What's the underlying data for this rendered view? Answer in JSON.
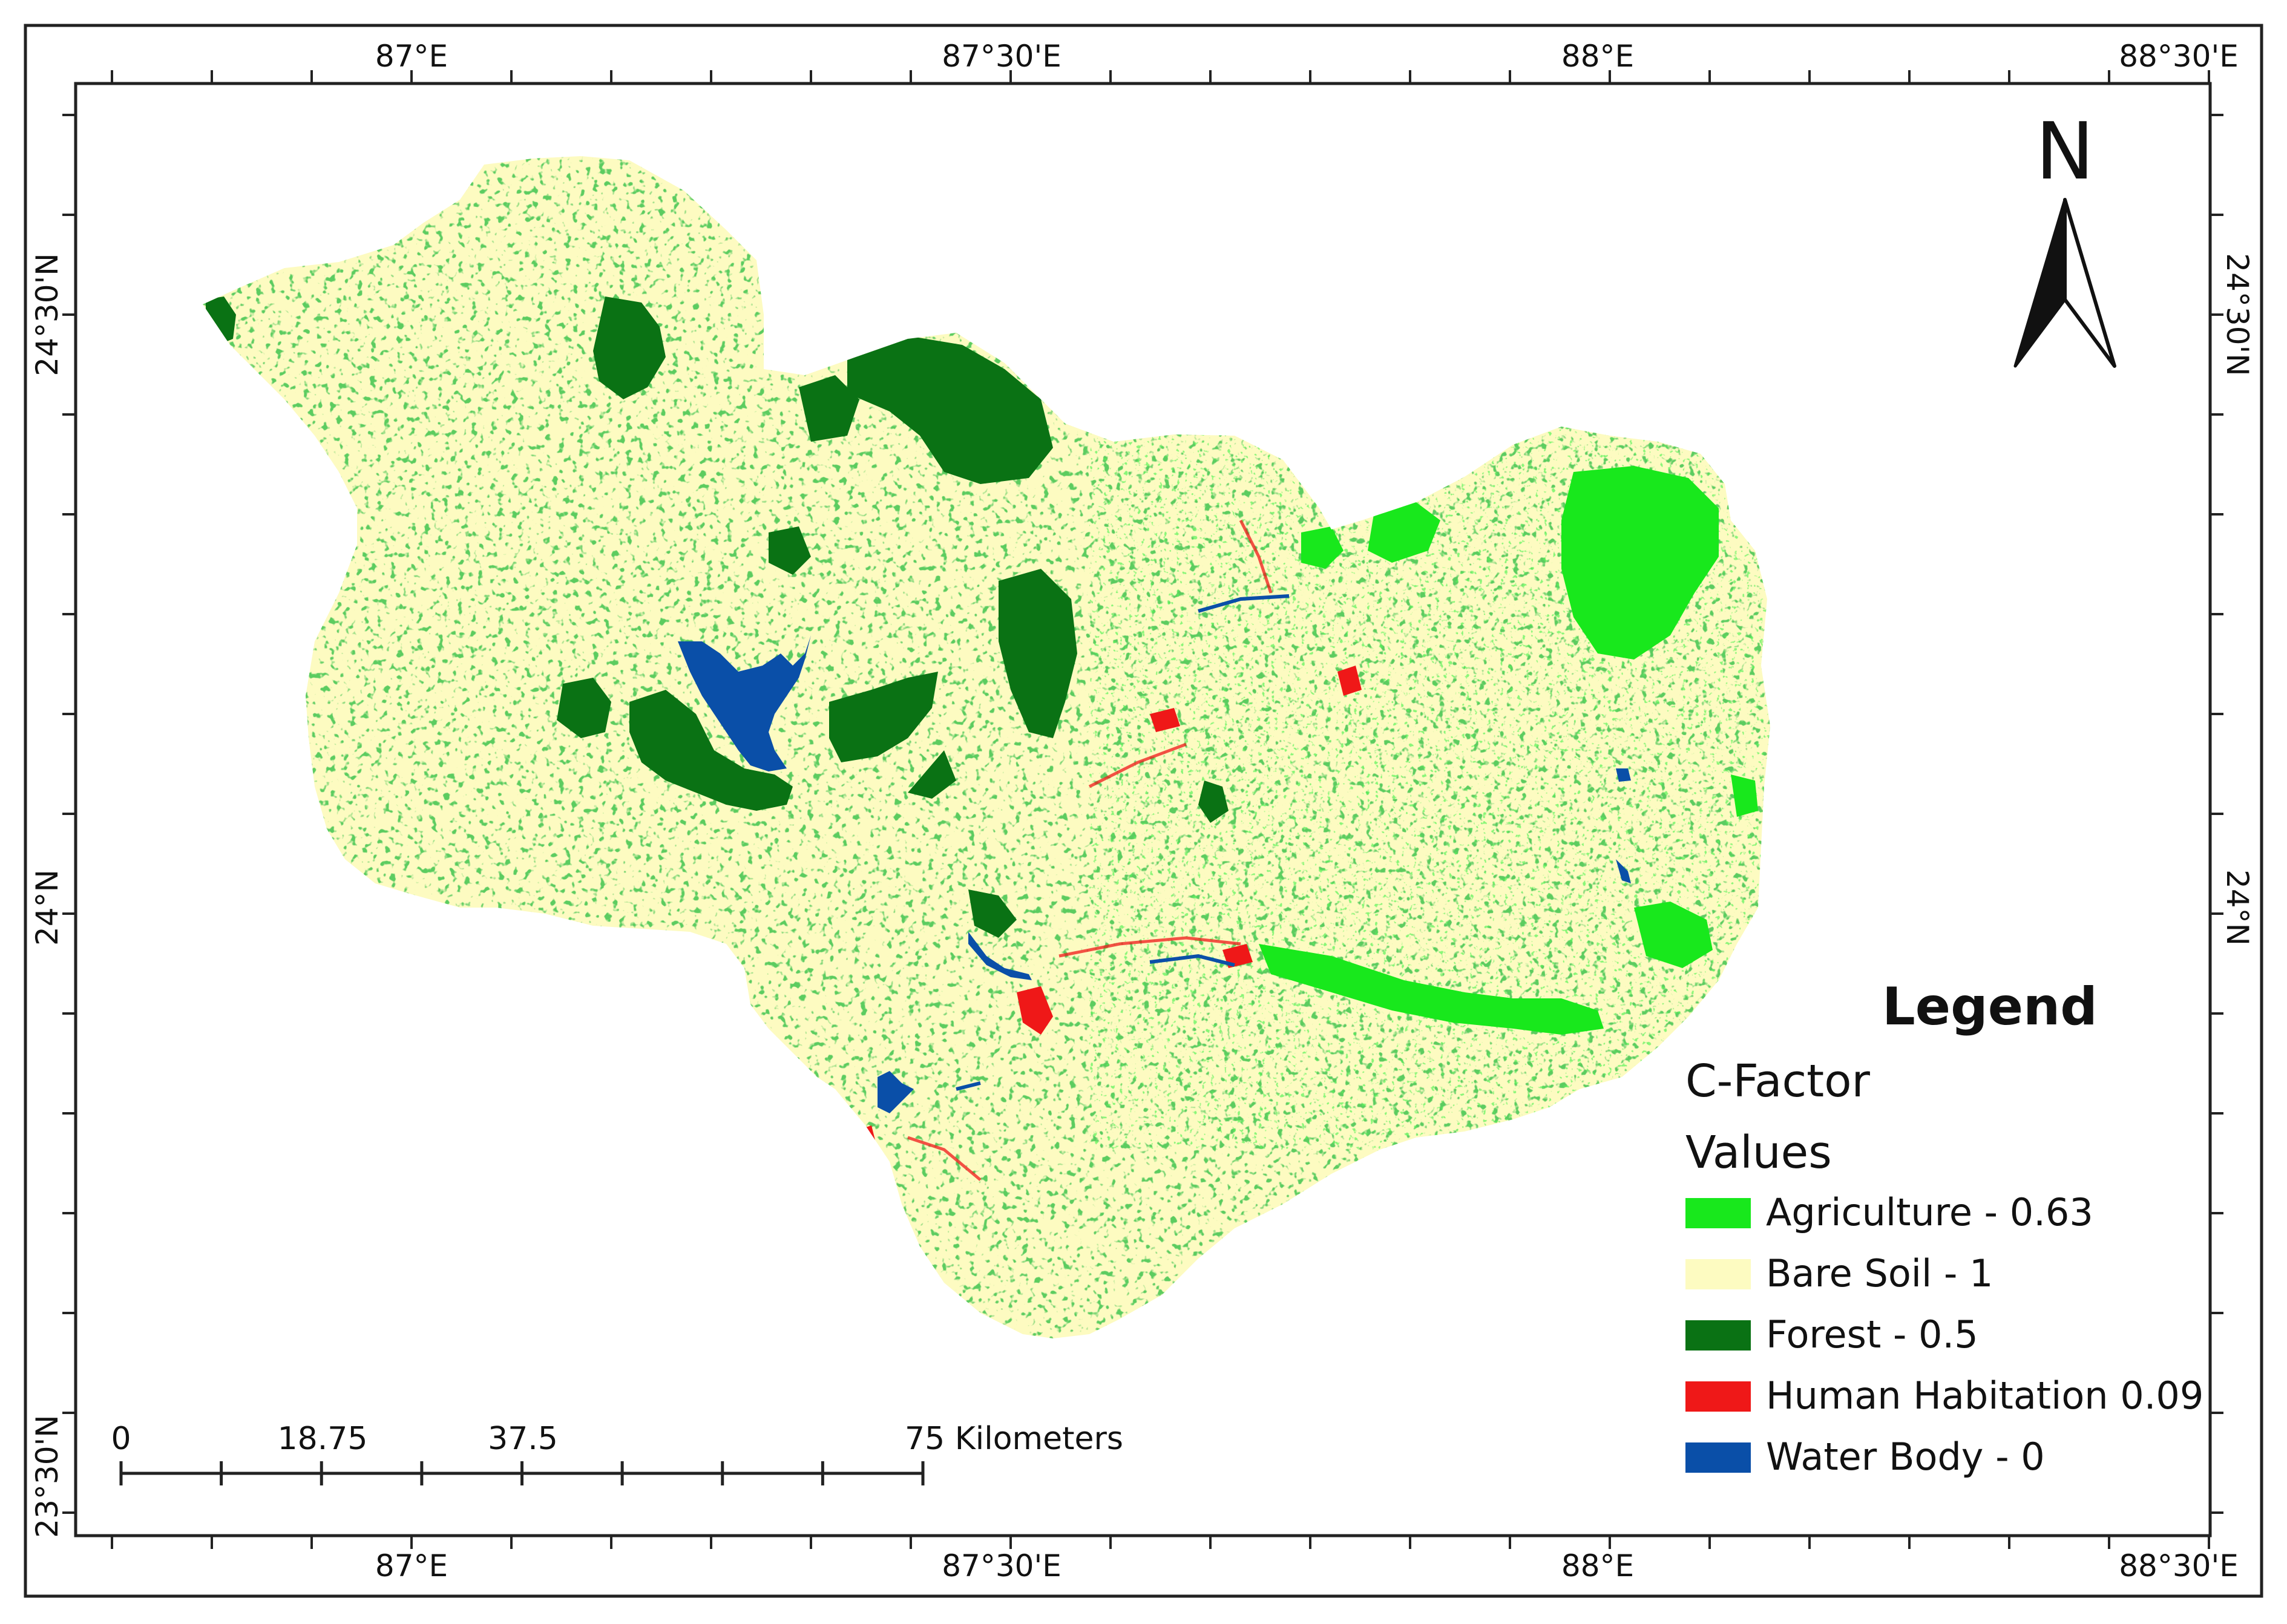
{
  "map": {
    "top_lon_labels": [
      "87°E",
      "87°30'E",
      "88°E",
      "88°30'E"
    ],
    "bottom_lon_labels": [
      "87°E",
      "87°30'E",
      "88°E",
      "88°30'E"
    ],
    "left_lat_labels": [
      "24°30'N",
      "24°N",
      "23°30'N"
    ],
    "right_lat_labels": [
      "24°30'N",
      "24°N"
    ],
    "north_arrow": {
      "icon": "north-arrow-icon",
      "letter": "N"
    },
    "scale_bar": {
      "labels": [
        "0",
        "18.75",
        "37.5",
        "75 Kilometers"
      ],
      "values": [
        0,
        18.75,
        37.5,
        75
      ],
      "unit": "Kilometers"
    },
    "legend": {
      "title": "Legend",
      "field": "C-Factor",
      "subtitle": "Values",
      "items": [
        {
          "label": "Agriculture - 0.63",
          "color": "#18e81c"
        },
        {
          "label": "Bare Soil - 1",
          "color": "#fdfbc1"
        },
        {
          "label": "Forest - 0.5",
          "color": "#0a7214"
        },
        {
          "label": "Human Habitation 0.09",
          "color": "#ef1818"
        },
        {
          "label": "Water Body - 0",
          "color": "#0a4fa8"
        }
      ]
    }
  }
}
